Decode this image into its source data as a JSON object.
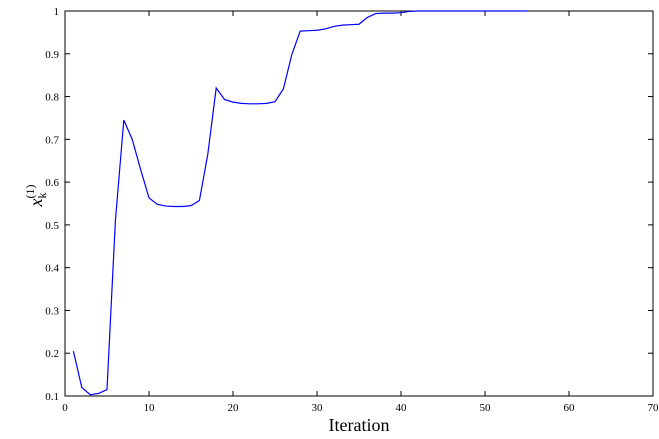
{
  "chart_data": {
    "type": "line",
    "title": "",
    "xlabel": "Iteration",
    "ylabel": {
      "base": "x",
      "subscript": "k",
      "superscript": "(1)"
    },
    "xlim": [
      0,
      70
    ],
    "ylim": [
      0.1,
      1
    ],
    "xticks": [
      "0",
      "10",
      "20",
      "30",
      "40",
      "50",
      "60",
      "70"
    ],
    "yticks": [
      "0.1",
      "0.2",
      "0.3",
      "0.4",
      "0.5",
      "0.6",
      "0.7",
      "0.8",
      "0.9",
      "1"
    ],
    "grid": false,
    "legend": "none",
    "series": [
      {
        "color": "#0000ff",
        "x": [
          1,
          2,
          3,
          4,
          5,
          6,
          7,
          8,
          9,
          10,
          11,
          12,
          13,
          14,
          15,
          16,
          17,
          18,
          19,
          20,
          21,
          22,
          23,
          24,
          25,
          26,
          27,
          28,
          29,
          30,
          31,
          32,
          33,
          34,
          35,
          36,
          37,
          38,
          39,
          40,
          41,
          42,
          43,
          44,
          45,
          46,
          47,
          48,
          49,
          50,
          51,
          52,
          53,
          54,
          55
        ],
        "y": [
          0.205,
          0.12,
          0.103,
          0.106,
          0.115,
          0.51,
          0.745,
          0.7,
          0.63,
          0.563,
          0.548,
          0.544,
          0.543,
          0.543,
          0.545,
          0.557,
          0.665,
          0.82,
          0.793,
          0.787,
          0.784,
          0.783,
          0.783,
          0.784,
          0.788,
          0.818,
          0.898,
          0.953,
          0.954,
          0.955,
          0.958,
          0.964,
          0.967,
          0.968,
          0.969,
          0.985,
          0.994,
          0.995,
          0.995,
          0.996,
          0.999,
          1.0,
          1.0,
          1.0,
          1.0,
          1.0,
          1.0,
          1.0,
          1.0,
          1.0,
          1.0,
          1.0,
          1.0,
          1.0,
          1.0
        ]
      }
    ]
  }
}
